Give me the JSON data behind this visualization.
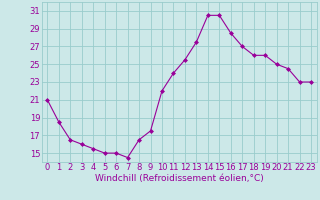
{
  "x": [
    0,
    1,
    2,
    3,
    4,
    5,
    6,
    7,
    8,
    9,
    10,
    11,
    12,
    13,
    14,
    15,
    16,
    17,
    18,
    19,
    20,
    21,
    22,
    23
  ],
  "y": [
    21,
    18.5,
    16.5,
    16,
    15.5,
    15,
    15,
    14.5,
    16.5,
    17.5,
    22,
    24,
    25.5,
    27.5,
    30.5,
    30.5,
    28.5,
    27,
    26,
    26,
    25,
    24.5,
    23,
    23
  ],
  "line_color": "#990099",
  "marker": "D",
  "marker_size": 2.0,
  "bg_color": "#cce8e8",
  "grid_color": "#99cccc",
  "xlabel": "Windchill (Refroidissement éolien,°C)",
  "xlabel_color": "#990099",
  "xlabel_fontsize": 6.5,
  "ylabel_ticks": [
    15,
    17,
    19,
    21,
    23,
    25,
    27,
    29,
    31
  ],
  "ylim": [
    14,
    32
  ],
  "xlim": [
    -0.5,
    23.5
  ],
  "tick_color": "#990099",
  "tick_fontsize": 6.0,
  "line_width": 0.8
}
